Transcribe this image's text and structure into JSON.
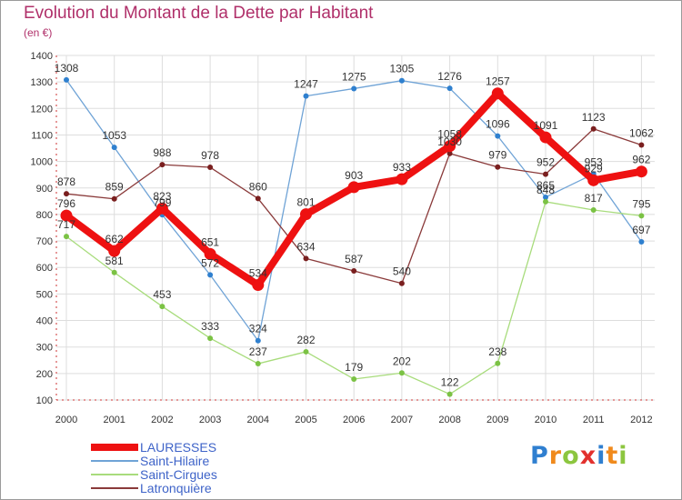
{
  "title": "Evolution du Montant de la Dette par Habitant",
  "subtitle": "(en €)",
  "logo": {
    "letters": [
      {
        "ch": "P",
        "color": "#2f7fd0"
      },
      {
        "ch": "r",
        "color": "#f08a1d"
      },
      {
        "ch": "o",
        "color": "#8cc63f"
      },
      {
        "ch": "x",
        "color": "#e2312e"
      },
      {
        "ch": "i",
        "color": "#2f7fd0"
      },
      {
        "ch": "t",
        "color": "#f08a1d"
      },
      {
        "ch": "i",
        "color": "#8cc63f"
      }
    ]
  },
  "chart_data": {
    "type": "line",
    "title": "Evolution du Montant de la Dette par Habitant",
    "subtitle": "(en €)",
    "x": [
      "2000",
      "2001",
      "2002",
      "2003",
      "2004",
      "2005",
      "2006",
      "2007",
      "2008",
      "2009",
      "2010",
      "2011",
      "2012"
    ],
    "ylim": [
      100,
      1400
    ],
    "yticks": [
      100,
      200,
      300,
      400,
      500,
      600,
      700,
      800,
      900,
      1000,
      1100,
      1200,
      1300,
      1400
    ],
    "grid": true,
    "legend": "bottom-left",
    "series": [
      {
        "name": "LAURESSES",
        "color": "#ee1111",
        "point_color": "#ee1111",
        "values": [
          796,
          662,
          823,
          651,
          534,
          801,
          903,
          933,
          1058,
          1257,
          1091,
          929,
          962
        ],
        "labels": [
          "796",
          "662",
          "823",
          "651",
          "534",
          "801",
          "903",
          "933",
          "1058",
          "1257",
          "1091",
          "929",
          "962"
        ]
      },
      {
        "name": "Saint-Hilaire",
        "color": "#6fa3d6",
        "point_color": "#2f80cf",
        "values": [
          1308,
          1053,
          799,
          572,
          324,
          1247,
          1275,
          1305,
          1276,
          1096,
          865,
          953,
          697
        ],
        "labels": [
          "1308",
          "1053",
          "799",
          "572",
          "324",
          "1247",
          "1275",
          "1305",
          "1276",
          "1096",
          "865",
          "953",
          "697"
        ]
      },
      {
        "name": "Saint-Cirgues",
        "color": "#a8dc7c",
        "point_color": "#7bc244",
        "values": [
          717,
          581,
          453,
          333,
          237,
          282,
          179,
          202,
          122,
          238,
          848,
          817,
          795
        ],
        "labels": [
          "717",
          "581",
          "453",
          "333",
          "237",
          "282",
          "179",
          "202",
          "122",
          "238",
          "848",
          "817",
          "795"
        ]
      },
      {
        "name": "Latronquière",
        "color": "#8a3a3a",
        "point_color": "#7a1f1f",
        "values": [
          878,
          859,
          988,
          978,
          860,
          634,
          587,
          540,
          1030,
          979,
          952,
          1123,
          1062
        ],
        "labels": [
          "878",
          "859",
          "988",
          "978",
          "860",
          "634",
          "587",
          "540",
          "1030",
          "979",
          "952",
          "1123",
          "1062"
        ]
      }
    ]
  }
}
